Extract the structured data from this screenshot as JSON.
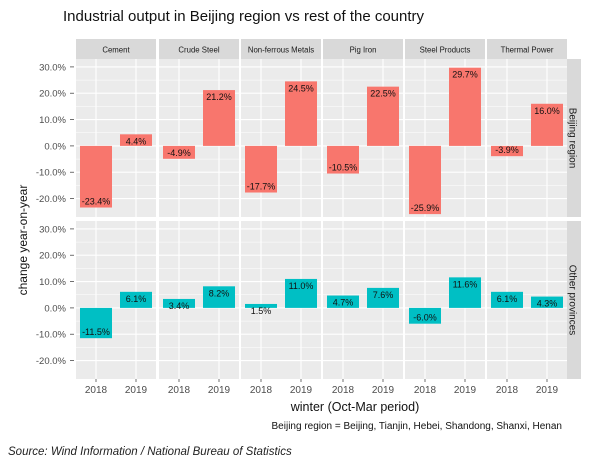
{
  "chart_data": {
    "type": "bar",
    "title": "Industrial output in Beijing region vs rest of the country",
    "ylabel": "change year-on-year",
    "xlabel": "winter (Oct-Mar period)",
    "caption": "Beijing region = Beijing, Tianjin, Hebei, Shandong, Shanxi, Henan",
    "source": "Source: Wind Information / National Bureau of Statistics",
    "x": [
      "2018",
      "2019"
    ],
    "columns": [
      "Cement",
      "Crude Steel",
      "Non-ferrous Metals",
      "Pig Iron",
      "Steel Products",
      "Thermal Power"
    ],
    "rows": [
      {
        "name": "Beijing region",
        "color": "#f8766d",
        "ylim": [
          -0.27,
          0.33
        ],
        "ticks": [
          -0.2,
          -0.1,
          0.0,
          0.1,
          0.2,
          0.3
        ],
        "tick_labels": [
          "-20.0%",
          "-10.0%",
          "0.0%",
          "10.0%",
          "20.0%",
          "30.0%"
        ],
        "values": [
          [
            -0.234,
            0.044
          ],
          [
            -0.049,
            0.212
          ],
          [
            -0.177,
            0.245
          ],
          [
            -0.105,
            0.225
          ],
          [
            -0.259,
            0.297
          ],
          [
            -0.039,
            0.16
          ]
        ],
        "labels": [
          [
            "-23.4%",
            "4.4%"
          ],
          [
            "-4.9%",
            "21.2%"
          ],
          [
            "-17.7%",
            "24.5%"
          ],
          [
            "-10.5%",
            "22.5%"
          ],
          [
            "-25.9%",
            "29.7%"
          ],
          [
            "-3.9%",
            "16.0%"
          ]
        ]
      },
      {
        "name": "Other provinces",
        "color": "#00bfc4",
        "ylim": [
          -0.27,
          0.33
        ],
        "ticks": [
          -0.2,
          -0.1,
          0.0,
          0.1,
          0.2,
          0.3
        ],
        "tick_labels": [
          "-20.0%",
          "-10.0%",
          "0.0%",
          "10.0%",
          "20.0%",
          "30.0%"
        ],
        "values": [
          [
            -0.115,
            0.061
          ],
          [
            0.034,
            0.082
          ],
          [
            0.015,
            0.11
          ],
          [
            0.047,
            0.076
          ],
          [
            -0.06,
            0.116
          ],
          [
            0.061,
            0.043
          ]
        ],
        "labels": [
          [
            "-11.5%",
            "6.1%"
          ],
          [
            "3.4%",
            "8.2%"
          ],
          [
            "1.5%",
            "11.0%"
          ],
          [
            "4.7%",
            "7.6%"
          ],
          [
            "-6.0%",
            "11.6%"
          ],
          [
            "6.1%",
            "4.3%"
          ]
        ]
      }
    ]
  }
}
